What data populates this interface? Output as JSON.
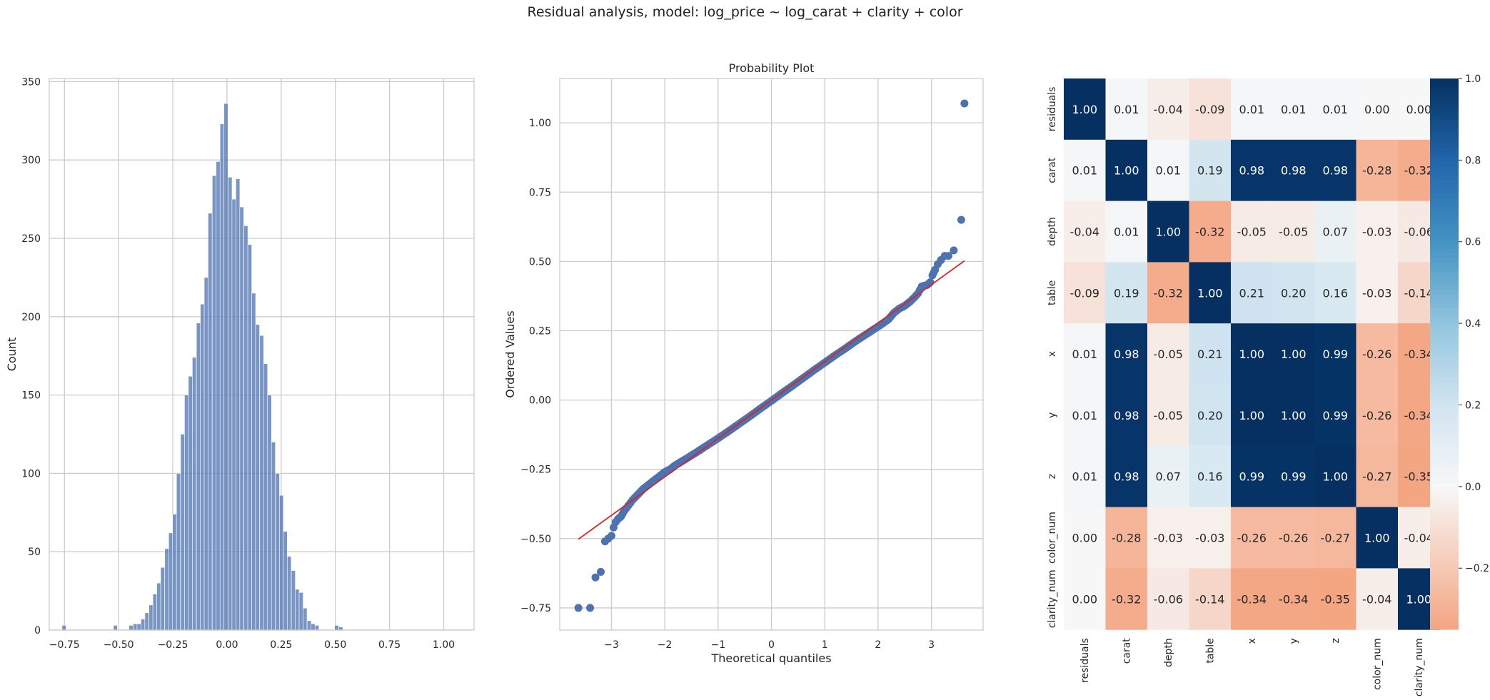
{
  "figure": {
    "title": "Residual analysis, model: log_price ~ log_carat + clarity + color",
    "colors": {
      "bar": "#4c72b0",
      "point": "#4c72b0",
      "fit_line": "#d62728",
      "grid": "#cccccc",
      "spine": "#cccccc",
      "heat_neg": "#f4a582",
      "heat_zero": "#f7f7f7",
      "heat_pos": "#053061"
    }
  },
  "chart_data": [
    {
      "type": "bar",
      "subtype": "histogram",
      "title": "",
      "xlabel": "",
      "ylabel": "Count",
      "xlim": [
        -0.82,
        1.14
      ],
      "ylim": [
        0,
        352
      ],
      "xticks": [
        -0.75,
        -0.5,
        -0.25,
        0.0,
        0.25,
        0.5,
        0.75,
        1.0
      ],
      "xtick_labels": [
        "−0.75",
        "−0.50",
        "−0.25",
        "0.00",
        "0.25",
        "0.50",
        "0.75",
        "1.00"
      ],
      "yticks": [
        0,
        50,
        100,
        150,
        200,
        250,
        300,
        350
      ],
      "bin_width": 0.01825,
      "bins": [
        {
          "x0": -0.761,
          "count": 3
        },
        {
          "x0": -0.524,
          "count": 3
        },
        {
          "x0": -0.452,
          "count": 3
        },
        {
          "x0": -0.433,
          "count": 4
        },
        {
          "x0": -0.415,
          "count": 4
        },
        {
          "x0": -0.397,
          "count": 7
        },
        {
          "x0": -0.379,
          "count": 11
        },
        {
          "x0": -0.36,
          "count": 16
        },
        {
          "x0": -0.342,
          "count": 23
        },
        {
          "x0": -0.324,
          "count": 30
        },
        {
          "x0": -0.306,
          "count": 40
        },
        {
          "x0": -0.287,
          "count": 52
        },
        {
          "x0": -0.269,
          "count": 62
        },
        {
          "x0": -0.251,
          "count": 74
        },
        {
          "x0": -0.233,
          "count": 100
        },
        {
          "x0": -0.214,
          "count": 125
        },
        {
          "x0": -0.196,
          "count": 150
        },
        {
          "x0": -0.178,
          "count": 162
        },
        {
          "x0": -0.16,
          "count": 174
        },
        {
          "x0": -0.141,
          "count": 196
        },
        {
          "x0": -0.123,
          "count": 208
        },
        {
          "x0": -0.105,
          "count": 225
        },
        {
          "x0": -0.087,
          "count": 266
        },
        {
          "x0": -0.068,
          "count": 290
        },
        {
          "x0": -0.05,
          "count": 299
        },
        {
          "x0": -0.032,
          "count": 323
        },
        {
          "x0": -0.014,
          "count": 336
        },
        {
          "x0": 0.005,
          "count": 289
        },
        {
          "x0": 0.023,
          "count": 275
        },
        {
          "x0": 0.041,
          "count": 288
        },
        {
          "x0": 0.059,
          "count": 270
        },
        {
          "x0": 0.078,
          "count": 258
        },
        {
          "x0": 0.096,
          "count": 246
        },
        {
          "x0": 0.114,
          "count": 215
        },
        {
          "x0": 0.132,
          "count": 195
        },
        {
          "x0": 0.151,
          "count": 188
        },
        {
          "x0": 0.169,
          "count": 170
        },
        {
          "x0": 0.187,
          "count": 150
        },
        {
          "x0": 0.205,
          "count": 120
        },
        {
          "x0": 0.224,
          "count": 100
        },
        {
          "x0": 0.242,
          "count": 86
        },
        {
          "x0": 0.26,
          "count": 63
        },
        {
          "x0": 0.278,
          "count": 47
        },
        {
          "x0": 0.297,
          "count": 38
        },
        {
          "x0": 0.315,
          "count": 26
        },
        {
          "x0": 0.333,
          "count": 24
        },
        {
          "x0": 0.351,
          "count": 14
        },
        {
          "x0": 0.37,
          "count": 6
        },
        {
          "x0": 0.388,
          "count": 4
        },
        {
          "x0": 0.406,
          "count": 3
        },
        {
          "x0": 0.497,
          "count": 3
        },
        {
          "x0": 0.516,
          "count": 2
        }
      ]
    },
    {
      "type": "scatter",
      "title": "Probability Plot",
      "xlabel": "Theoretical quantiles",
      "ylabel": "Ordered Values",
      "xlim": [
        -3.97,
        3.97
      ],
      "ylim": [
        -0.83,
        1.16
      ],
      "xticks": [
        -3,
        -2,
        -1,
        0,
        1,
        2,
        3
      ],
      "xtick_labels": [
        "−3",
        "−2",
        "−1",
        "0",
        "1",
        "2",
        "3"
      ],
      "yticks": [
        -0.75,
        -0.5,
        -0.25,
        0.0,
        0.25,
        0.5,
        0.75,
        1.0
      ],
      "ytick_labels": [
        "−0.75",
        "−0.50",
        "−0.25",
        "0.00",
        "0.25",
        "0.50",
        "0.75",
        "1.00"
      ],
      "fit_line": {
        "x": [
          -3.62,
          3.62
        ],
        "y": [
          -0.502,
          0.502
        ]
      },
      "points": [
        [
          -3.62,
          -0.75
        ],
        [
          -3.4,
          -0.75
        ],
        [
          -3.3,
          -0.64
        ],
        [
          -3.2,
          -0.62
        ],
        [
          -3.12,
          -0.51
        ],
        [
          -3.06,
          -0.5
        ],
        [
          -3.0,
          -0.49
        ],
        [
          -2.96,
          -0.46
        ],
        [
          -2.92,
          -0.44
        ],
        [
          -2.88,
          -0.43
        ],
        [
          -2.82,
          -0.42
        ],
        [
          -2.76,
          -0.4
        ],
        [
          -2.68,
          -0.38
        ],
        [
          -2.6,
          -0.36
        ],
        [
          -2.5,
          -0.34
        ],
        [
          -2.4,
          -0.32
        ],
        [
          -2.3,
          -0.305
        ],
        [
          -2.2,
          -0.29
        ],
        [
          -2.1,
          -0.275
        ],
        [
          -2.0,
          -0.26
        ],
        [
          -1.9,
          -0.25
        ],
        [
          -1.8,
          -0.235
        ],
        [
          -1.6,
          -0.212
        ],
        [
          -1.4,
          -0.188
        ],
        [
          -1.2,
          -0.163
        ],
        [
          -1.0,
          -0.138
        ],
        [
          -0.8,
          -0.112
        ],
        [
          -0.6,
          -0.085
        ],
        [
          -0.4,
          -0.058
        ],
        [
          -0.2,
          -0.03
        ],
        [
          0.0,
          -0.003
        ],
        [
          0.2,
          0.025
        ],
        [
          0.4,
          0.052
        ],
        [
          0.6,
          0.08
        ],
        [
          0.8,
          0.108
        ],
        [
          1.0,
          0.135
        ],
        [
          1.2,
          0.162
        ],
        [
          1.4,
          0.188
        ],
        [
          1.6,
          0.215
        ],
        [
          1.8,
          0.24
        ],
        [
          2.0,
          0.265
        ],
        [
          2.1,
          0.278
        ],
        [
          2.2,
          0.292
        ],
        [
          2.3,
          0.315
        ],
        [
          2.4,
          0.33
        ],
        [
          2.5,
          0.34
        ],
        [
          2.6,
          0.355
        ],
        [
          2.68,
          0.37
        ],
        [
          2.75,
          0.385
        ],
        [
          2.82,
          0.41
        ],
        [
          2.92,
          0.415
        ],
        [
          2.98,
          0.425
        ],
        [
          3.02,
          0.45
        ],
        [
          3.07,
          0.47
        ],
        [
          3.12,
          0.49
        ],
        [
          3.18,
          0.505
        ],
        [
          3.25,
          0.52
        ],
        [
          3.32,
          0.52
        ],
        [
          3.42,
          0.54
        ],
        [
          3.56,
          0.65
        ],
        [
          3.62,
          1.07
        ]
      ]
    },
    {
      "type": "heatmap",
      "title": "",
      "labels": [
        "residuals",
        "carat",
        "depth",
        "table",
        "x",
        "y",
        "z",
        "color_num",
        "clarity_num"
      ],
      "values": [
        [
          1.0,
          0.01,
          -0.04,
          -0.09,
          0.01,
          0.01,
          0.01,
          0.0,
          -0.0
        ],
        [
          0.01,
          1.0,
          0.01,
          0.19,
          0.98,
          0.98,
          0.98,
          -0.28,
          -0.32
        ],
        [
          -0.04,
          0.01,
          1.0,
          -0.32,
          -0.05,
          -0.05,
          0.07,
          -0.03,
          -0.06
        ],
        [
          -0.09,
          0.19,
          -0.32,
          1.0,
          0.21,
          0.2,
          0.16,
          -0.03,
          -0.14
        ],
        [
          0.01,
          0.98,
          -0.05,
          0.21,
          1.0,
          1.0,
          0.99,
          -0.26,
          -0.34
        ],
        [
          0.01,
          0.98,
          -0.05,
          0.2,
          1.0,
          1.0,
          0.99,
          -0.26,
          -0.34
        ],
        [
          0.01,
          0.98,
          0.07,
          0.16,
          0.99,
          0.99,
          1.0,
          -0.27,
          -0.35
        ],
        [
          0.0,
          -0.28,
          -0.03,
          -0.03,
          -0.26,
          -0.26,
          -0.27,
          1.0,
          -0.04
        ],
        [
          -0.0,
          -0.32,
          -0.06,
          -0.14,
          -0.34,
          -0.34,
          -0.35,
          -0.04,
          1.0
        ]
      ],
      "colorbar": {
        "vmin": -0.35,
        "vmax": 1.0,
        "ticks": [
          -0.2,
          0.0,
          0.2,
          0.4,
          0.6,
          0.8,
          1.0
        ],
        "tick_labels": [
          "−0.2",
          "0.0",
          "0.2",
          "0.4",
          "0.6",
          "0.8",
          "1.0"
        ]
      }
    }
  ]
}
